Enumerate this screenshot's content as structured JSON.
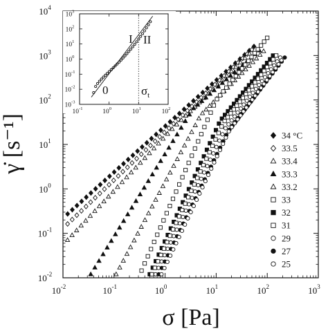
{
  "chart_data": [
    {
      "type": "scatter",
      "xlabel": "σ [Pa]",
      "ylabel": "γ̇ [s⁻¹]",
      "xscale": "log",
      "yscale": "log",
      "xlim": [
        0.01,
        1000
      ],
      "ylim": [
        0.01,
        10000
      ],
      "x_ticks": [
        "10",
        "10",
        "10",
        "10",
        "10",
        "10"
      ],
      "x_tick_exponents": [
        "-2",
        "-1",
        "0",
        "1",
        "2",
        "3"
      ],
      "y_ticks": [
        "10",
        "10",
        "10",
        "10",
        "10",
        "10",
        "10"
      ],
      "y_tick_exponents": [
        "-2",
        "-1",
        "0",
        "1",
        "2",
        "3",
        "4"
      ],
      "legend_position": "right",
      "series": [
        {
          "name": "34 °C",
          "marker": "diamond",
          "filled": true,
          "x_range": [
            0.01,
            55
          ],
          "y_range": [
            0.22,
            1600
          ],
          "break_x": 55,
          "low_slope": 1.0,
          "high_slope": 1.0
        },
        {
          "name": "33.5",
          "marker": "diamond",
          "filled": false,
          "x_range": [
            0.01,
            50
          ],
          "y_range": [
            0.13,
            1350
          ],
          "break_x": 50,
          "low_slope": 1.05,
          "high_slope": 1.05
        },
        {
          "name": "33.4",
          "marker": "triangle",
          "filled": false,
          "x_range": [
            0.01,
            45
          ],
          "y_range": [
            0.055,
            1100
          ],
          "break_x": 1.5,
          "low_slope": 1.2,
          "high_slope": 1.1
        },
        {
          "name": "33.3",
          "marker": "triangle",
          "filled": true,
          "x_range": [
            0.035,
            70
          ],
          "y_range": [
            0.012,
            1300
          ],
          "break_x": 3.5,
          "low_slope": 2.3,
          "high_slope": 1.25
        },
        {
          "name": "33.2",
          "marker": "triangle",
          "filled": false,
          "x_range": [
            0.11,
            85
          ],
          "y_range": [
            0.012,
            1250
          ],
          "break_x": 5,
          "low_slope": 2.6,
          "high_slope": 1.4
        },
        {
          "name": "33",
          "marker": "square",
          "filled": false,
          "x_range": [
            0.3,
            100
          ],
          "y_range": [
            0.01,
            2500
          ],
          "break_x": 10,
          "low_slope": 3.0,
          "high_slope": 1.6
        },
        {
          "name": "32",
          "marker": "square",
          "filled": true,
          "x_range": [
            0.5,
            130
          ],
          "y_range": [
            0.012,
            1000
          ],
          "break_x": 12,
          "low_slope": 3.0,
          "high_slope": 1.7
        },
        {
          "name": "31",
          "marker": "square",
          "filled": false,
          "x_range": [
            0.55,
            150
          ],
          "y_range": [
            0.012,
            1000
          ],
          "break_x": 14,
          "low_slope": 3.0,
          "high_slope": 1.8
        },
        {
          "name": "29",
          "marker": "circle",
          "filled": false,
          "x_range": [
            0.65,
            180
          ],
          "y_range": [
            0.012,
            900
          ],
          "break_x": 15,
          "low_slope": 3.0,
          "high_slope": 1.85
        },
        {
          "name": "27",
          "marker": "circle",
          "filled": true,
          "x_range": [
            0.75,
            220
          ],
          "y_range": [
            0.012,
            900
          ],
          "break_x": 17,
          "low_slope": 3.0,
          "high_slope": 1.9
        },
        {
          "name": "25",
          "marker": "circle",
          "filled": false,
          "x_range": [
            0.85,
            190
          ],
          "y_range": [
            0.012,
            780
          ],
          "break_x": 18,
          "low_slope": 3.0,
          "high_slope": 1.9
        }
      ]
    },
    {
      "type": "scatter",
      "role": "inset",
      "xscale": "log",
      "yscale": "log",
      "xlim": [
        0.1,
        100
      ],
      "ylim": [
        0.001,
        1000
      ],
      "x_ticks": [
        "10",
        "10",
        "10",
        "10"
      ],
      "x_tick_exponents": [
        "-1",
        "0",
        "1",
        "2"
      ],
      "y_ticks": [
        "10",
        "10",
        "10",
        "10",
        "10",
        "10",
        "10"
      ],
      "y_tick_exponents": [
        "-3",
        "-2",
        "-1",
        "0",
        "1",
        "2",
        "3"
      ],
      "annotations": {
        "zero": "0",
        "one": "I",
        "two": "II",
        "sigma": "σ",
        "sigma_sub": "t"
      },
      "dotted_vline_x": 10,
      "series": [
        {
          "name": "",
          "marker": "circle",
          "filled": false,
          "x_range": [
            0.3,
            25
          ],
          "y_range": [
            0.006,
            300
          ]
        }
      ]
    }
  ]
}
